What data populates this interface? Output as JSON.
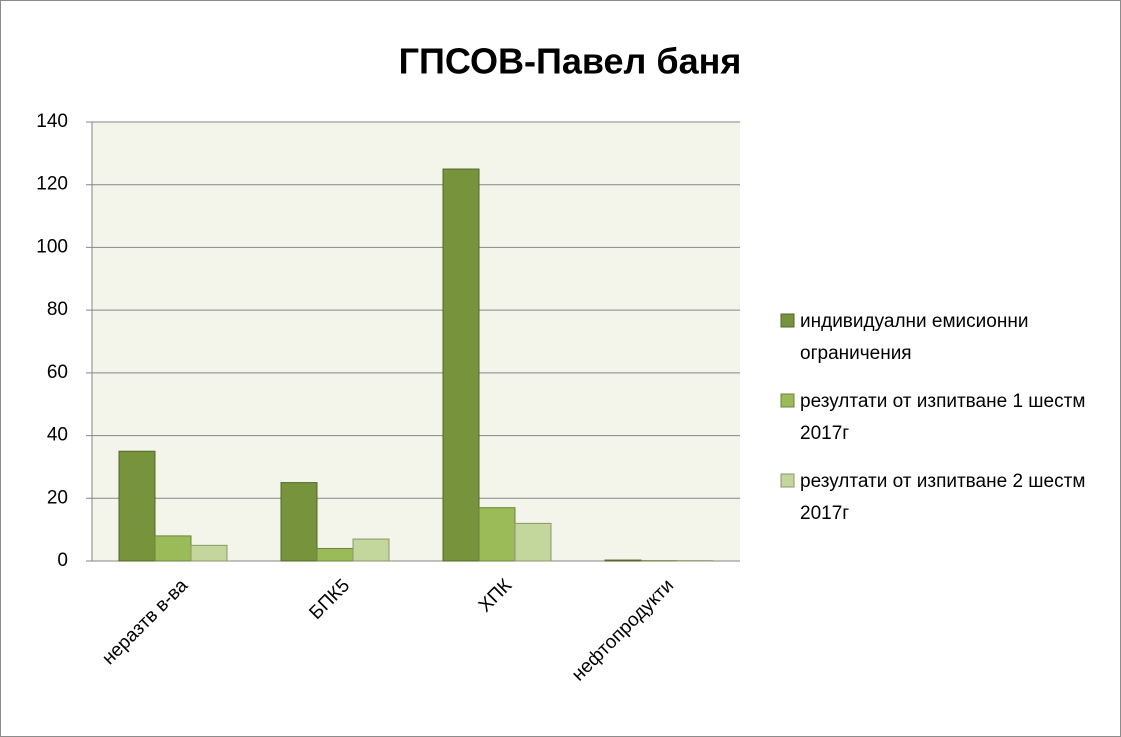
{
  "chart_data": {
    "type": "bar",
    "title": "ГПСОВ-Павел баня",
    "categories": [
      "неразтв в-ва",
      "БПК5",
      "ХПК",
      "нефтопродукти"
    ],
    "series": [
      {
        "name": "индивидуални емисионни ограничения",
        "color": "#77933c",
        "values": [
          35,
          25,
          125,
          0.3
        ]
      },
      {
        "name": "резултати от изпитване 1 шестм 2017г",
        "color": "#9bbb59",
        "values": [
          8,
          4,
          17,
          0.1
        ]
      },
      {
        "name": "резултати от изпитване 2 шестм 2017г",
        "color": "#c3d69b",
        "values": [
          5,
          7,
          12,
          0.1
        ]
      }
    ],
    "ylim": [
      0,
      140
    ],
    "yticks": [
      0,
      20,
      40,
      60,
      80,
      100,
      120,
      140
    ],
    "grid": true,
    "legend": "right"
  }
}
